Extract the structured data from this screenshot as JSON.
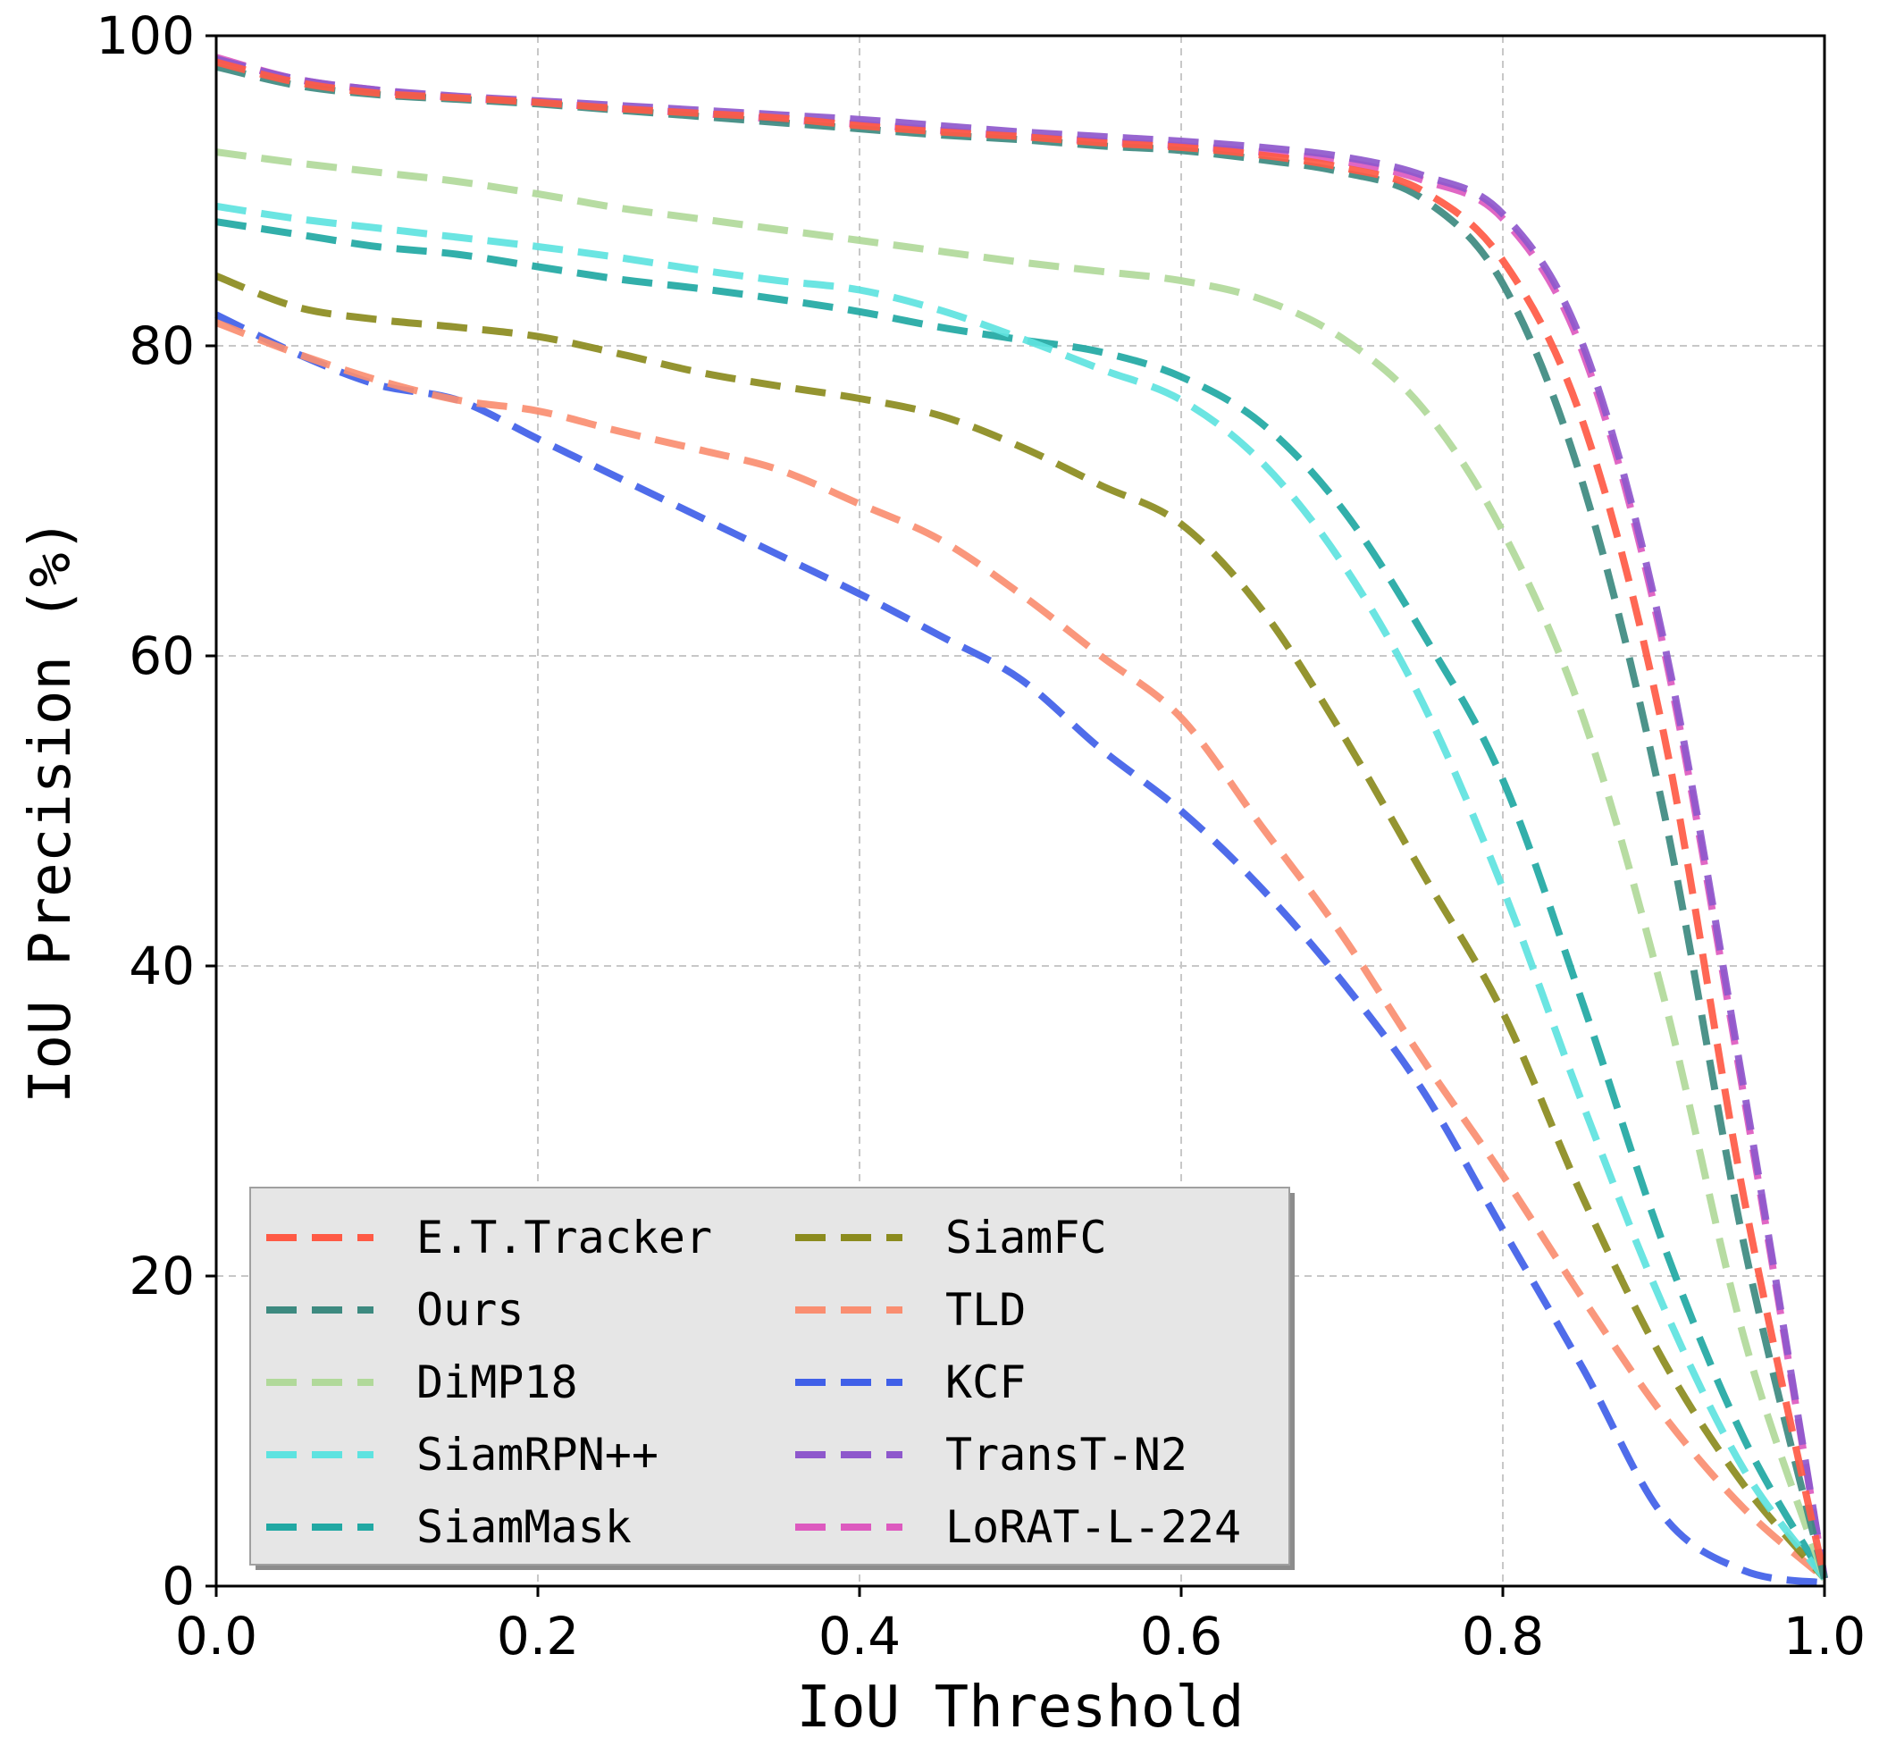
{
  "chart_data": {
    "type": "line",
    "title": "",
    "xlabel": "IoU Threshold",
    "ylabel": "IoU Precision (%)",
    "xlim": [
      0.0,
      1.0
    ],
    "ylim": [
      0,
      100
    ],
    "xticks": [
      0.0,
      0.2,
      0.4,
      0.6,
      0.8,
      1.0
    ],
    "xtick_labels": [
      "0.0",
      "0.2",
      "0.4",
      "0.6",
      "0.8",
      "1.0"
    ],
    "yticks": [
      0,
      20,
      40,
      60,
      80,
      100
    ],
    "ytick_labels": [
      "0",
      "20",
      "40",
      "60",
      "80",
      "100"
    ],
    "grid": true,
    "legend_position": "bottom-left",
    "legend_columns": 2,
    "x": [
      0.0,
      0.05,
      0.1,
      0.15,
      0.2,
      0.25,
      0.3,
      0.35,
      0.4,
      0.45,
      0.5,
      0.55,
      0.6,
      0.65,
      0.7,
      0.75,
      0.8,
      0.85,
      0.9,
      0.95,
      1.0
    ],
    "series": [
      {
        "name": "E.T.Tracker",
        "color": "#ff5a45",
        "values": [
          98.3,
          97.0,
          96.3,
          96.0,
          95.7,
          95.3,
          95.0,
          94.7,
          94.2,
          93.8,
          93.5,
          93.1,
          92.8,
          92.3,
          91.5,
          90.0,
          85.5,
          75.0,
          55.0,
          25.0,
          0.5
        ]
      },
      {
        "name": "Ours",
        "color": "#3d8a80",
        "values": [
          98.0,
          96.8,
          96.2,
          95.9,
          95.6,
          95.2,
          94.8,
          94.4,
          94.0,
          93.6,
          93.3,
          92.9,
          92.6,
          92.0,
          91.2,
          89.5,
          84.0,
          71.0,
          50.0,
          22.0,
          0.5
        ]
      },
      {
        "name": "DiMP18",
        "color": "#b1d99a",
        "values": [
          92.5,
          91.8,
          91.2,
          90.6,
          89.8,
          88.9,
          88.2,
          87.5,
          86.8,
          86.1,
          85.4,
          84.8,
          84.2,
          83.0,
          80.5,
          76.0,
          68.0,
          56.0,
          38.0,
          16.0,
          0.5
        ]
      },
      {
        "name": "SiamRPN++",
        "color": "#5ee3e0",
        "values": [
          89.0,
          88.2,
          87.6,
          87.0,
          86.4,
          85.7,
          84.9,
          84.2,
          83.6,
          82.3,
          80.5,
          78.5,
          76.5,
          72.5,
          66.0,
          57.0,
          45.0,
          31.0,
          18.0,
          7.5,
          0.5
        ]
      },
      {
        "name": "SiamMask",
        "color": "#21a8a3",
        "values": [
          88.0,
          87.2,
          86.4,
          85.9,
          85.1,
          84.3,
          83.7,
          83.0,
          82.2,
          81.2,
          80.4,
          79.6,
          78.0,
          75.0,
          69.5,
          61.5,
          52.0,
          37.5,
          22.0,
          9.5,
          0.5
        ]
      },
      {
        "name": "SiamFC",
        "color": "#8b8b1e",
        "values": [
          84.5,
          82.5,
          81.7,
          81.2,
          80.6,
          79.5,
          78.3,
          77.4,
          76.6,
          75.5,
          73.5,
          71.0,
          68.5,
          63.0,
          55.0,
          46.0,
          37.0,
          25.0,
          14.5,
          6.5,
          0.5
        ]
      },
      {
        "name": "TLD",
        "color": "#fa8e71",
        "values": [
          81.5,
          79.5,
          77.8,
          76.5,
          75.8,
          74.5,
          73.3,
          72.0,
          69.8,
          67.5,
          64.0,
          60.0,
          56.0,
          49.0,
          42.0,
          34.0,
          26.5,
          18.5,
          11.0,
          5.0,
          0.5
        ]
      },
      {
        "name": "KCF",
        "color": "#4060e8",
        "values": [
          82.0,
          79.5,
          77.5,
          76.5,
          74.0,
          71.5,
          69.0,
          66.5,
          64.0,
          61.3,
          58.5,
          54.0,
          50.0,
          45.0,
          39.0,
          32.0,
          23.0,
          14.0,
          4.5,
          1.0,
          0.2
        ]
      },
      {
        "name": "TransT-N2",
        "color": "#8e58cc",
        "values": [
          98.5,
          97.2,
          96.5,
          96.1,
          95.8,
          95.5,
          95.2,
          94.9,
          94.6,
          94.2,
          93.8,
          93.5,
          93.2,
          92.8,
          92.2,
          91.0,
          88.5,
          80.0,
          61.0,
          32.0,
          0.5
        ]
      },
      {
        "name": "LoRAT-L-224",
        "color": "#dd5abf",
        "values": [
          98.6,
          97.2,
          96.5,
          96.0,
          95.7,
          95.3,
          95.0,
          94.6,
          94.3,
          93.9,
          93.5,
          93.2,
          92.9,
          92.5,
          91.9,
          90.7,
          88.2,
          79.5,
          60.5,
          31.5,
          0.5
        ]
      }
    ]
  }
}
